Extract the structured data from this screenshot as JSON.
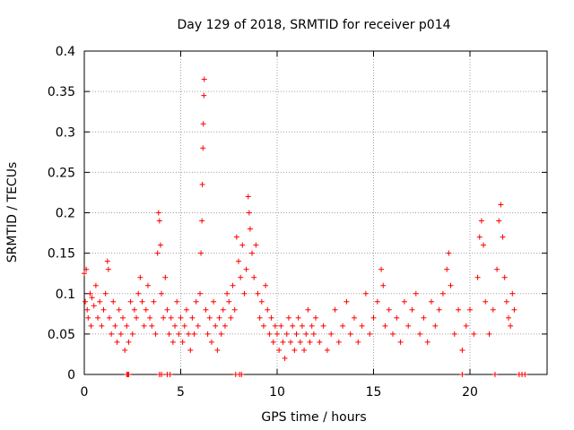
{
  "chart_data": {
    "type": "scatter",
    "title": "Day 129 of 2018, SRMTID for receiver p014",
    "xlabel": "GPS time / hours",
    "ylabel": "SRMTID / TECUs",
    "xlim": [
      0,
      24
    ],
    "ylim": [
      0,
      0.4
    ],
    "x_ticks": [
      0,
      5,
      10,
      15,
      20
    ],
    "y_ticks": [
      0,
      0.05,
      0.1,
      0.15,
      0.2,
      0.25,
      0.3,
      0.35,
      0.4
    ],
    "x_tick_labels": [
      "0",
      "5",
      "10",
      "15",
      "20"
    ],
    "y_tick_labels": [
      "0",
      "0.05",
      "0.1",
      "0.15",
      "0.2",
      "0.25",
      "0.3",
      "0.35",
      "0.4"
    ],
    "grid": true,
    "marker": "+",
    "series": [
      {
        "name": "SRMTID",
        "color": "#ff0000",
        "points": [
          [
            0.0,
            0.125
          ],
          [
            0.05,
            0.09
          ],
          [
            0.1,
            0.13
          ],
          [
            0.15,
            0.08
          ],
          [
            0.2,
            0.07
          ],
          [
            0.3,
            0.1
          ],
          [
            0.35,
            0.06
          ],
          [
            0.4,
            0.095
          ],
          [
            0.5,
            0.085
          ],
          [
            0.6,
            0.11
          ],
          [
            0.7,
            0.07
          ],
          [
            0.8,
            0.09
          ],
          [
            0.9,
            0.06
          ],
          [
            1.0,
            0.08
          ],
          [
            1.1,
            0.1
          ],
          [
            1.2,
            0.14
          ],
          [
            1.25,
            0.13
          ],
          [
            1.3,
            0.07
          ],
          [
            1.4,
            0.05
          ],
          [
            1.5,
            0.09
          ],
          [
            1.6,
            0.06
          ],
          [
            1.7,
            0.04
          ],
          [
            1.8,
            0.08
          ],
          [
            1.9,
            0.05
          ],
          [
            2.0,
            0.07
          ],
          [
            2.1,
            0.03
          ],
          [
            2.2,
            0.06
          ],
          [
            2.3,
            0.04
          ],
          [
            2.4,
            0.09
          ],
          [
            2.5,
            0.05
          ],
          [
            2.6,
            0.08
          ],
          [
            2.7,
            0.07
          ],
          [
            2.8,
            0.1
          ],
          [
            2.9,
            0.12
          ],
          [
            3.0,
            0.09
          ],
          [
            3.1,
            0.06
          ],
          [
            3.2,
            0.08
          ],
          [
            3.3,
            0.11
          ],
          [
            3.4,
            0.07
          ],
          [
            3.5,
            0.06
          ],
          [
            3.6,
            0.09
          ],
          [
            3.7,
            0.05
          ],
          [
            3.8,
            0.15
          ],
          [
            3.85,
            0.2
          ],
          [
            3.9,
            0.19
          ],
          [
            3.95,
            0.16
          ],
          [
            4.0,
            0.1
          ],
          [
            4.1,
            0.07
          ],
          [
            4.2,
            0.12
          ],
          [
            4.3,
            0.08
          ],
          [
            4.4,
            0.05
          ],
          [
            4.5,
            0.07
          ],
          [
            4.6,
            0.04
          ],
          [
            4.7,
            0.06
          ],
          [
            4.8,
            0.09
          ],
          [
            4.9,
            0.05
          ],
          [
            5.0,
            0.07
          ],
          [
            5.1,
            0.04
          ],
          [
            5.2,
            0.06
          ],
          [
            5.3,
            0.08
          ],
          [
            5.4,
            0.05
          ],
          [
            5.5,
            0.03
          ],
          [
            5.6,
            0.07
          ],
          [
            5.7,
            0.05
          ],
          [
            5.8,
            0.09
          ],
          [
            5.9,
            0.06
          ],
          [
            6.0,
            0.1
          ],
          [
            6.05,
            0.15
          ],
          [
            6.1,
            0.19
          ],
          [
            6.12,
            0.235
          ],
          [
            6.15,
            0.28
          ],
          [
            6.17,
            0.31
          ],
          [
            6.2,
            0.345
          ],
          [
            6.22,
            0.365
          ],
          [
            6.3,
            0.08
          ],
          [
            6.4,
            0.05
          ],
          [
            6.5,
            0.07
          ],
          [
            6.6,
            0.04
          ],
          [
            6.7,
            0.09
          ],
          [
            6.8,
            0.06
          ],
          [
            6.9,
            0.03
          ],
          [
            7.0,
            0.07
          ],
          [
            7.1,
            0.05
          ],
          [
            7.2,
            0.08
          ],
          [
            7.3,
            0.06
          ],
          [
            7.4,
            0.1
          ],
          [
            7.5,
            0.09
          ],
          [
            7.6,
            0.07
          ],
          [
            7.7,
            0.11
          ],
          [
            7.8,
            0.08
          ],
          [
            7.9,
            0.17
          ],
          [
            8.0,
            0.14
          ],
          [
            8.1,
            0.12
          ],
          [
            8.2,
            0.16
          ],
          [
            8.3,
            0.1
          ],
          [
            8.4,
            0.13
          ],
          [
            8.5,
            0.22
          ],
          [
            8.55,
            0.2
          ],
          [
            8.6,
            0.18
          ],
          [
            8.7,
            0.15
          ],
          [
            8.8,
            0.12
          ],
          [
            8.9,
            0.16
          ],
          [
            9.0,
            0.1
          ],
          [
            9.1,
            0.07
          ],
          [
            9.2,
            0.09
          ],
          [
            9.3,
            0.06
          ],
          [
            9.4,
            0.11
          ],
          [
            9.5,
            0.08
          ],
          [
            9.6,
            0.05
          ],
          [
            9.7,
            0.07
          ],
          [
            9.8,
            0.04
          ],
          [
            9.9,
            0.06
          ],
          [
            10.0,
            0.05
          ],
          [
            10.1,
            0.03
          ],
          [
            10.2,
            0.06
          ],
          [
            10.3,
            0.04
          ],
          [
            10.4,
            0.02
          ],
          [
            10.5,
            0.05
          ],
          [
            10.6,
            0.07
          ],
          [
            10.7,
            0.04
          ],
          [
            10.8,
            0.06
          ],
          [
            10.9,
            0.03
          ],
          [
            11.0,
            0.05
          ],
          [
            11.1,
            0.07
          ],
          [
            11.2,
            0.04
          ],
          [
            11.3,
            0.06
          ],
          [
            11.4,
            0.03
          ],
          [
            11.5,
            0.05
          ],
          [
            11.6,
            0.08
          ],
          [
            11.7,
            0.04
          ],
          [
            11.8,
            0.06
          ],
          [
            11.9,
            0.05
          ],
          [
            12.0,
            0.07
          ],
          [
            12.2,
            0.04
          ],
          [
            12.4,
            0.06
          ],
          [
            12.6,
            0.03
          ],
          [
            12.8,
            0.05
          ],
          [
            13.0,
            0.08
          ],
          [
            13.2,
            0.04
          ],
          [
            13.4,
            0.06
          ],
          [
            13.6,
            0.09
          ],
          [
            13.8,
            0.05
          ],
          [
            14.0,
            0.07
          ],
          [
            14.2,
            0.04
          ],
          [
            14.4,
            0.06
          ],
          [
            14.6,
            0.1
          ],
          [
            14.8,
            0.05
          ],
          [
            15.0,
            0.07
          ],
          [
            15.2,
            0.09
          ],
          [
            15.4,
            0.13
          ],
          [
            15.5,
            0.11
          ],
          [
            15.6,
            0.06
          ],
          [
            15.8,
            0.08
          ],
          [
            16.0,
            0.05
          ],
          [
            16.2,
            0.07
          ],
          [
            16.4,
            0.04
          ],
          [
            16.6,
            0.09
          ],
          [
            16.8,
            0.06
          ],
          [
            17.0,
            0.08
          ],
          [
            17.2,
            0.1
          ],
          [
            17.4,
            0.05
          ],
          [
            17.6,
            0.07
          ],
          [
            17.8,
            0.04
          ],
          [
            18.0,
            0.09
          ],
          [
            18.2,
            0.06
          ],
          [
            18.4,
            0.08
          ],
          [
            18.6,
            0.1
          ],
          [
            18.8,
            0.13
          ],
          [
            18.9,
            0.15
          ],
          [
            19.0,
            0.11
          ],
          [
            19.2,
            0.05
          ],
          [
            19.4,
            0.08
          ],
          [
            19.6,
            0.03
          ],
          [
            19.8,
            0.06
          ],
          [
            20.0,
            0.08
          ],
          [
            20.2,
            0.05
          ],
          [
            20.4,
            0.12
          ],
          [
            20.5,
            0.17
          ],
          [
            20.6,
            0.19
          ],
          [
            20.7,
            0.16
          ],
          [
            20.8,
            0.09
          ],
          [
            21.0,
            0.05
          ],
          [
            21.2,
            0.08
          ],
          [
            21.4,
            0.13
          ],
          [
            21.5,
            0.19
          ],
          [
            21.6,
            0.21
          ],
          [
            21.7,
            0.17
          ],
          [
            21.8,
            0.12
          ],
          [
            21.9,
            0.09
          ],
          [
            22.0,
            0.07
          ],
          [
            22.1,
            0.06
          ],
          [
            22.2,
            0.1
          ],
          [
            22.3,
            0.08
          ]
        ],
        "zero_points": [
          2.2,
          2.25,
          2.3,
          3.9,
          4.0,
          4.3,
          4.45,
          7.85,
          8.05,
          8.15,
          19.6,
          21.3,
          22.55,
          22.7,
          22.85
        ]
      }
    ]
  }
}
